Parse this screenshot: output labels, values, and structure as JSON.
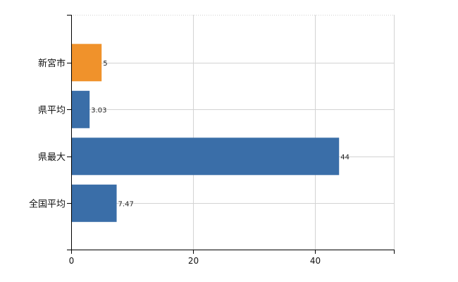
{
  "chart_data": {
    "type": "bar",
    "orientation": "horizontal",
    "categories": [
      "新宮市",
      "県平均",
      "県最大",
      "全国平均"
    ],
    "values": [
      5,
      3.03,
      44,
      7.47
    ],
    "value_labels": [
      "5",
      "3.03",
      "44",
      "7.47"
    ],
    "bar_colors": [
      "#f0922b",
      "#3a6ea8",
      "#3a6ea8",
      "#3a6ea8"
    ],
    "xlim": [
      0,
      53
    ],
    "xticks": [
      0,
      20,
      40
    ],
    "xtick_labels": [
      "0",
      "20",
      "40"
    ],
    "grid": true,
    "title": "",
    "xlabel": "",
    "ylabel": ""
  },
  "colors": {
    "highlight": "#f0922b",
    "bar": "#3a6ea8",
    "grid": "#d3d3d3",
    "axis": "#000000"
  }
}
